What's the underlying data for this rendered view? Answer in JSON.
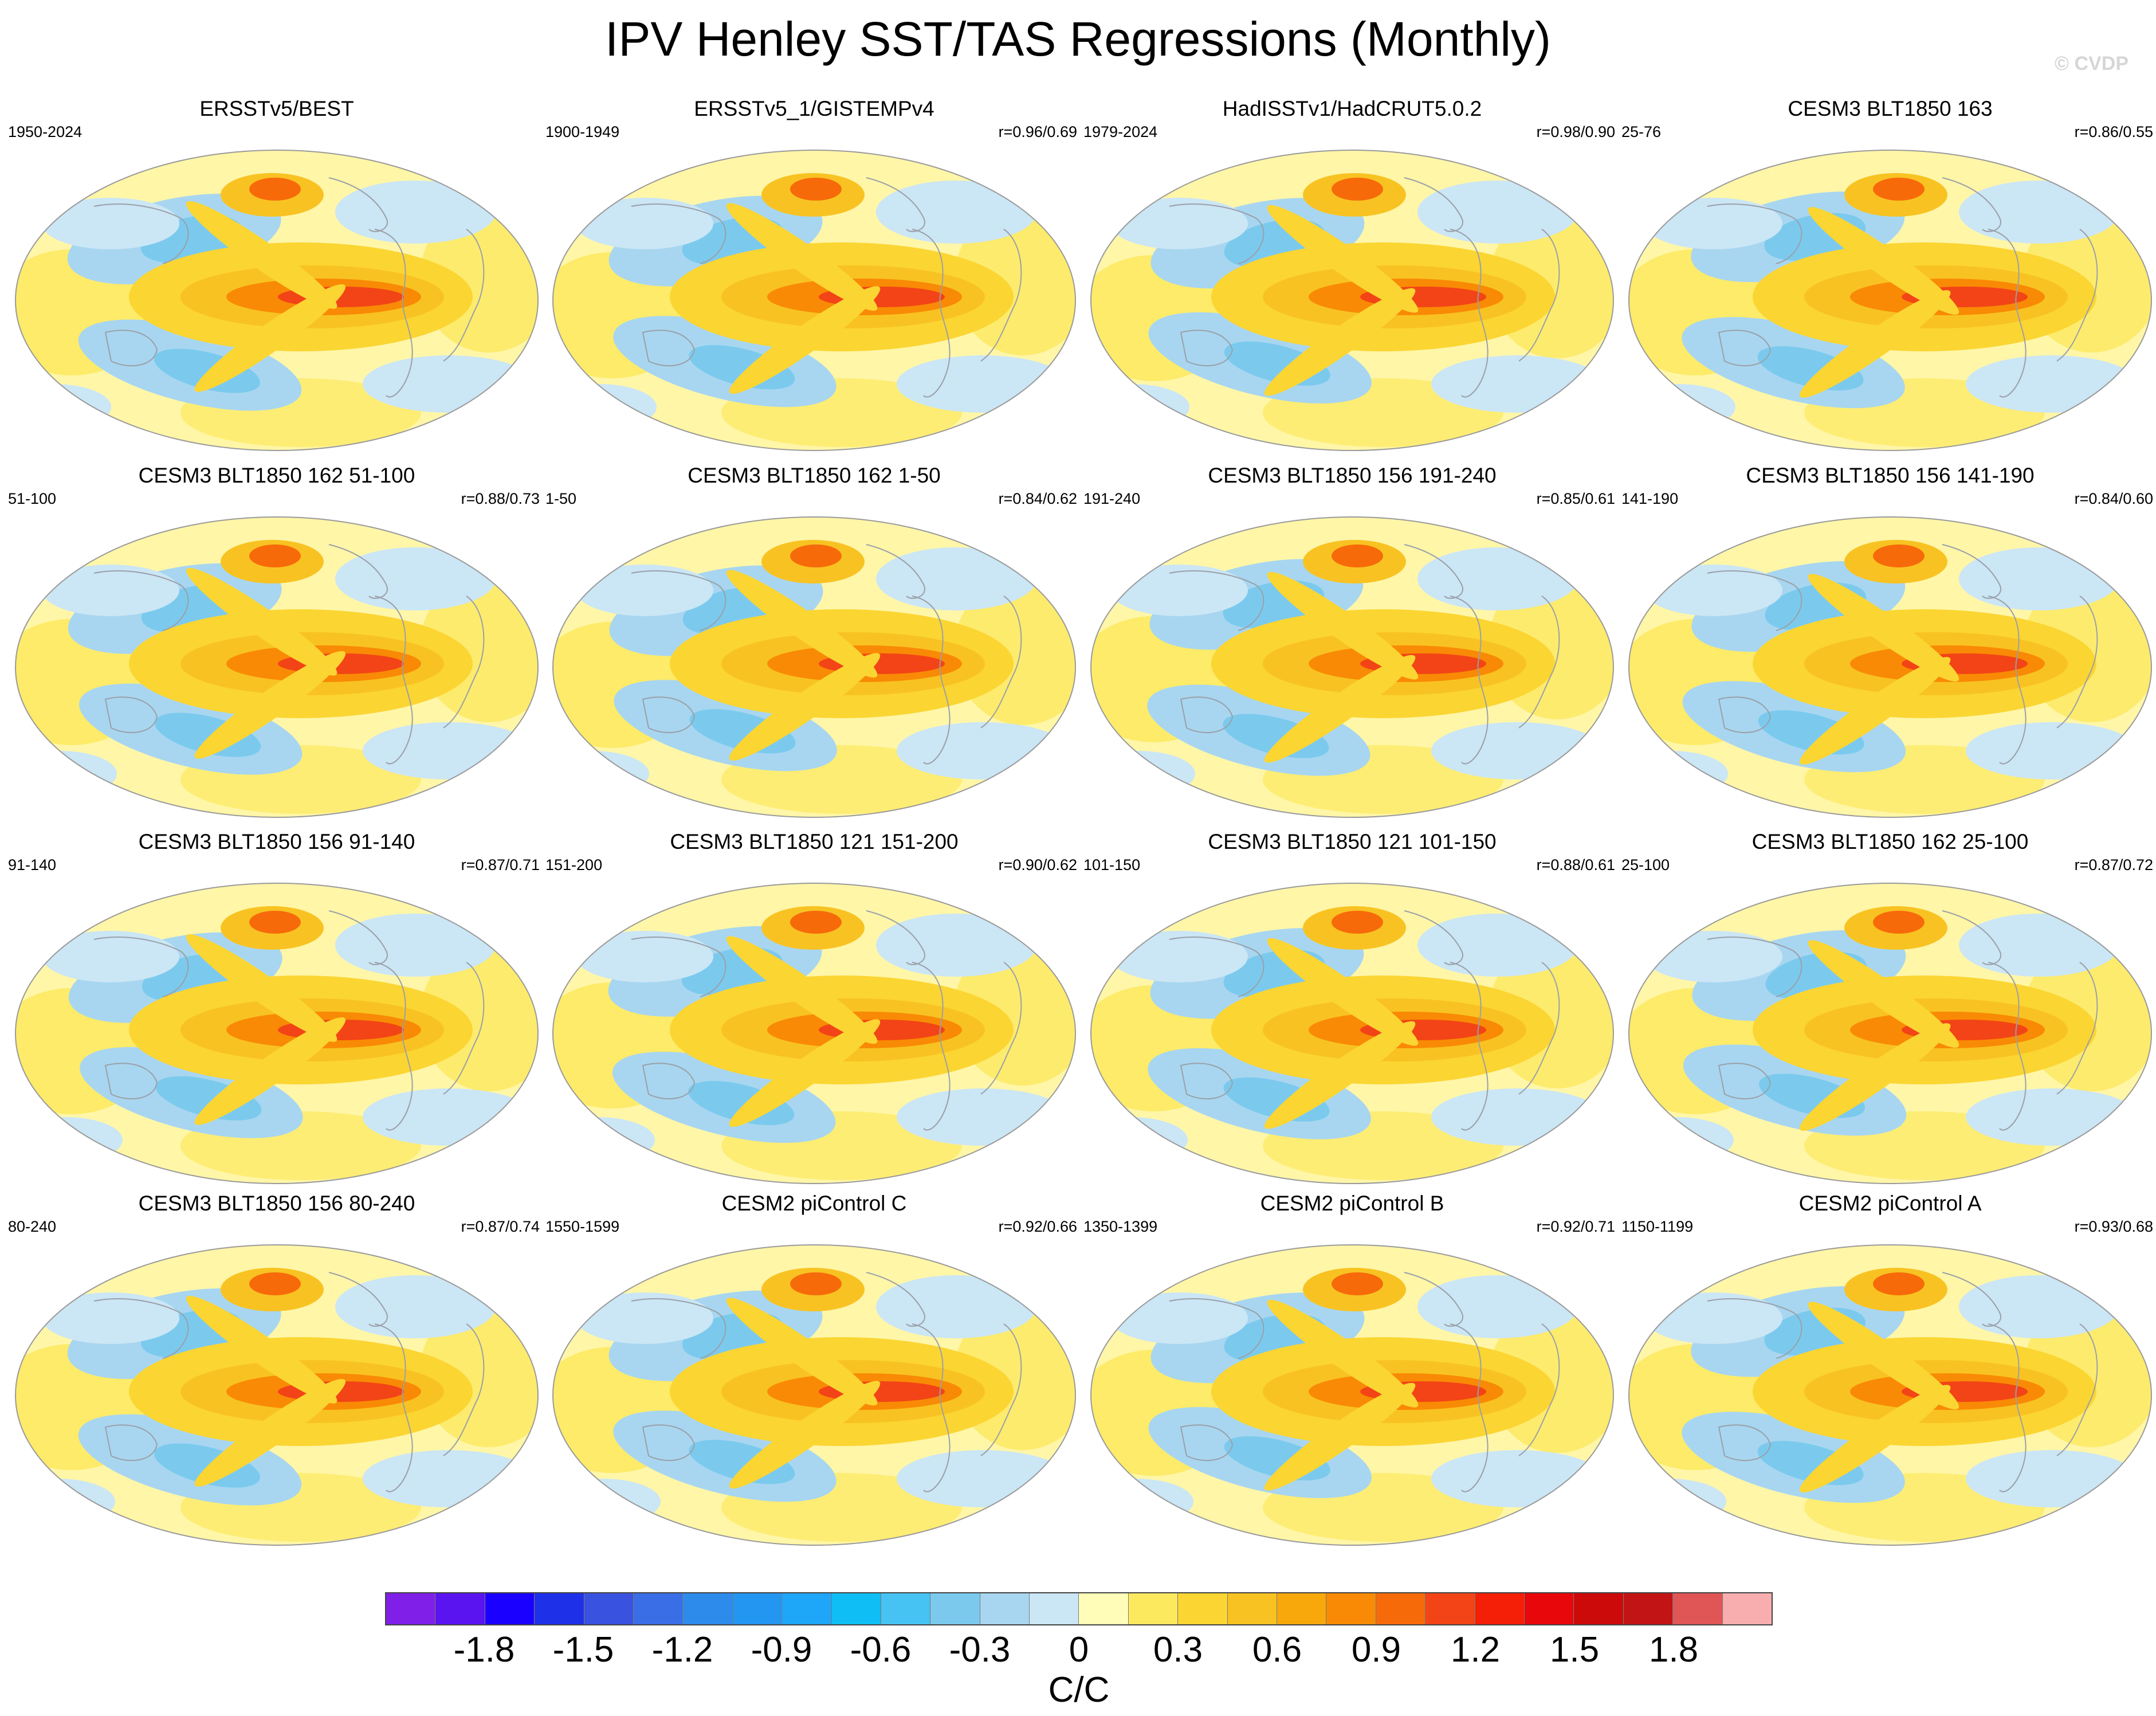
{
  "title": "IPV Henley SST/TAS Regressions (Monthly)",
  "watermark": "© CVDP",
  "panels": [
    {
      "title": "ERSSTv5/BEST",
      "years": "1950-2024",
      "r": ""
    },
    {
      "title": "ERSSTv5_1/GISTEMPv4",
      "years": "1900-1949",
      "r": "r=0.96/0.69"
    },
    {
      "title": "HadISSTv1/HadCRUT5.0.2",
      "years": "1979-2024",
      "r": "r=0.98/0.90"
    },
    {
      "title": "CESM3 BLT1850 163",
      "years": "25-76",
      "r": "r=0.86/0.55"
    },
    {
      "title": "CESM3 BLT1850 162 51-100",
      "years": "51-100",
      "r": "r=0.88/0.73"
    },
    {
      "title": "CESM3 BLT1850 162 1-50",
      "years": "1-50",
      "r": "r=0.84/0.62"
    },
    {
      "title": "CESM3 BLT1850 156 191-240",
      "years": "191-240",
      "r": "r=0.85/0.61"
    },
    {
      "title": "CESM3 BLT1850 156 141-190",
      "years": "141-190",
      "r": "r=0.84/0.60"
    },
    {
      "title": "CESM3 BLT1850 156 91-140",
      "years": "91-140",
      "r": "r=0.87/0.71"
    },
    {
      "title": "CESM3 BLT1850 121 151-200",
      "years": "151-200",
      "r": "r=0.90/0.62"
    },
    {
      "title": "CESM3 BLT1850 121 101-150",
      "years": "101-150",
      "r": "r=0.88/0.61"
    },
    {
      "title": "CESM3 BLT1850 162 25-100",
      "years": "25-100",
      "r": "r=0.87/0.72"
    },
    {
      "title": "CESM3 BLT1850 156 80-240",
      "years": "80-240",
      "r": "r=0.87/0.74"
    },
    {
      "title": "CESM2 piControl C",
      "years": "1550-1599",
      "r": "r=0.92/0.66"
    },
    {
      "title": "CESM2 piControl B",
      "years": "1350-1399",
      "r": "r=0.92/0.71"
    },
    {
      "title": "CESM2 piControl A",
      "years": "1150-1199",
      "r": "r=0.93/0.68"
    }
  ],
  "colorbar": {
    "colors": [
      "#7f1fe8",
      "#5a14f0",
      "#1a00ff",
      "#1f31e8",
      "#3a52e0",
      "#3a6ee6",
      "#2d8bec",
      "#2396f2",
      "#1ea6f8",
      "#0fbef5",
      "#47c3f3",
      "#7bcaee",
      "#a8d6f0",
      "#cbe6f5",
      "#fffdb8",
      "#fde95e",
      "#fbd532",
      "#f8c322",
      "#f9a80c",
      "#f98a05",
      "#f76a0a",
      "#f24416",
      "#f41f06",
      "#e8070a",
      "#cc0a0a",
      "#c21414",
      "#e05555",
      "#f8aeae"
    ],
    "ticks": [
      "-1.8",
      "-1.5",
      "-1.2",
      "-0.9",
      "-0.6",
      "-0.3",
      "0",
      "0.3",
      "0.6",
      "0.9",
      "1.2",
      "1.5",
      "1.8"
    ],
    "units": "C/C"
  }
}
